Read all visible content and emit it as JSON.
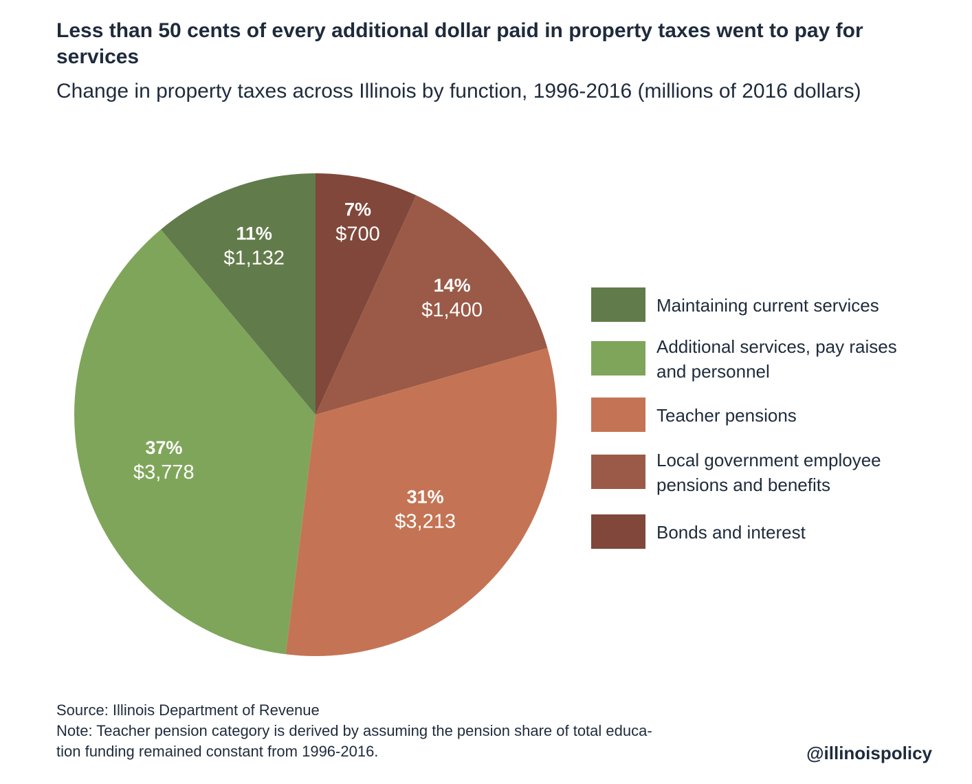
{
  "title": "Less than 50 cents of every additional dollar paid in property taxes went to pay for services",
  "subtitle": "Change in property taxes across Illinois by function, 1996-2016 (millions of 2016 dollars)",
  "chart_data": {
    "type": "pie",
    "unit": "millions of 2016 dollars",
    "slices": [
      {
        "name": "Bonds and interest",
        "value": 700,
        "percent_label": "7%",
        "value_label": "$700",
        "color": "#80473a"
      },
      {
        "name": "Local government employee pensions and benefits",
        "value": 1400,
        "percent_label": "14%",
        "value_label": "$1,400",
        "color": "#9b5a47"
      },
      {
        "name": "Teacher pensions",
        "value": 3213,
        "percent_label": "31%",
        "value_label": "$3,213",
        "color": "#c47454"
      },
      {
        "name": "Additional services, pay raises and personnel",
        "value": 3778,
        "percent_label": "37%",
        "value_label": "$3,778",
        "color": "#7fa55a"
      },
      {
        "name": "Maintaining current services",
        "value": 1132,
        "percent_label": "11%",
        "value_label": "$1,132",
        "color": "#627b4a"
      }
    ],
    "legend_position": "right"
  },
  "legend": {
    "items": [
      {
        "lines": [
          "Maintaining current services"
        ],
        "color": "#627b4a"
      },
      {
        "lines": [
          "Additional services, pay raises",
          "and personnel"
        ],
        "color": "#7fa55a"
      },
      {
        "lines": [
          "Teacher pensions"
        ],
        "color": "#c47454"
      },
      {
        "lines": [
          "Local government employee",
          "pensions and benefits"
        ],
        "color": "#9b5a47"
      },
      {
        "lines": [
          "Bonds and interest"
        ],
        "color": "#80473a"
      }
    ]
  },
  "footer": {
    "source": "Source: Illinois Department of Revenue",
    "note_line1": "Note: Teacher pension category is derived by assuming the pension share of total educa-",
    "note_line2": "tion funding remained constant from 1996-2016."
  },
  "handle": "@illinoispolicy"
}
